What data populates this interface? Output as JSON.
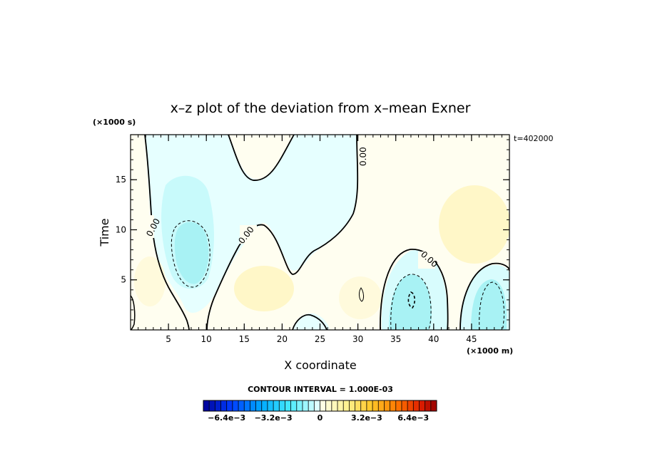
{
  "chart_data": {
    "type": "heatmap",
    "title": "x–z plot of the deviation from x–mean Exner",
    "xlabel": "X coordinate",
    "ylabel": "Time",
    "x_unit": "(×1000 m)",
    "y_unit": "(×1000 s)",
    "time_stamp": "t=402000",
    "xlim": [
      0,
      50
    ],
    "ylim": [
      0,
      19.5
    ],
    "xticks": [
      5,
      10,
      15,
      20,
      25,
      30,
      35,
      40,
      45
    ],
    "yticks": [
      5,
      10,
      15
    ],
    "contour_interval_text": "CONTOUR INTERVAL = 1.000E-03",
    "contour_labels": [
      "0.00",
      "0.00",
      "0.00",
      "0.00"
    ],
    "colorbar": {
      "min": -0.008,
      "max": 0.008,
      "n_bins": 40,
      "tick_labels": [
        "−6.4e−3",
        "−3.2e−3",
        "0",
        "3.2e−3",
        "6.4e−3"
      ],
      "tick_values": [
        -0.0064,
        -0.0032,
        0,
        0.0032,
        0.0064
      ]
    },
    "features": [
      {
        "x": 8,
        "y": 8,
        "value": -0.0025
      },
      {
        "x": 37,
        "y": 3,
        "value": -0.0025
      },
      {
        "x": 47,
        "y": 3.5,
        "value": -0.002
      },
      {
        "x": 17,
        "y": 4,
        "value": 0.0006
      },
      {
        "x": 47,
        "y": 11,
        "value": 0.0007
      }
    ]
  }
}
